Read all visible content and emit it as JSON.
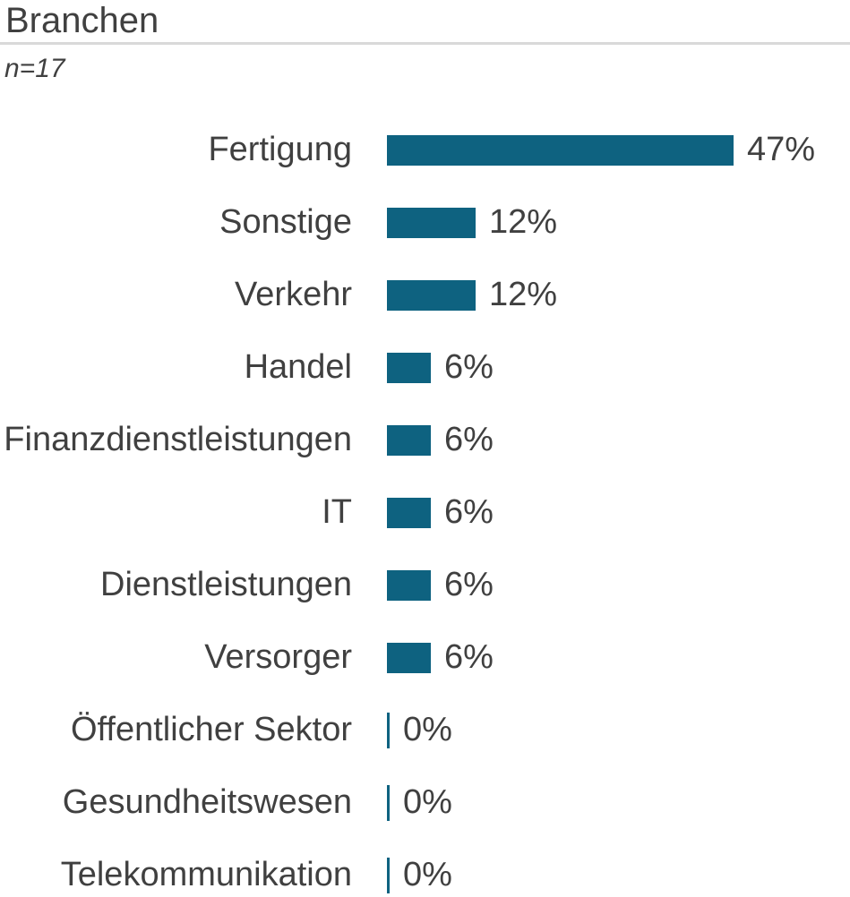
{
  "header": {
    "title": "Branchen",
    "sample_note": "n=17"
  },
  "colors": {
    "bar": "#0e6280",
    "text": "#404040",
    "divider": "#d9d9d9",
    "background": "#ffffff"
  },
  "chart_data": {
    "type": "bar",
    "orientation": "horizontal",
    "title": "Branchen",
    "subtitle": "n=17",
    "categories": [
      "Fertigung",
      "Sonstige",
      "Verkehr",
      "Handel",
      "Finanzdienstleistungen",
      "IT",
      "Dienstleistungen",
      "Versorger",
      "Öffentlicher Sektor",
      "Gesundheitswesen",
      "Telekommunikation"
    ],
    "values": [
      47,
      12,
      12,
      6,
      6,
      6,
      6,
      6,
      0,
      0,
      0
    ],
    "value_labels": [
      "47%",
      "12%",
      "12%",
      "6%",
      "6%",
      "6%",
      "6%",
      "6%",
      "0%",
      "0%",
      "0%"
    ],
    "xlabel": "",
    "ylabel": "",
    "xlim": [
      0,
      50
    ],
    "grid": false,
    "legend": false,
    "bar_color": "#0e6280"
  }
}
